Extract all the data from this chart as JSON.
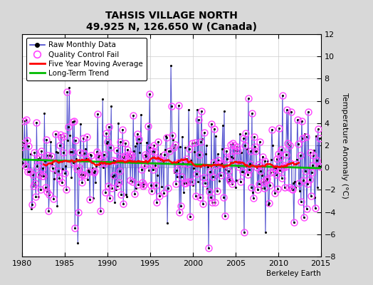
{
  "title": "TAHSIS VILLAGE NORTH",
  "subtitle": "49.925 N, 126.650 W (Canada)",
  "ylabel": "Temperature Anomaly (°C)",
  "attribution": "Berkeley Earth",
  "xlim": [
    1980,
    2015
  ],
  "ylim": [
    -8,
    12
  ],
  "yticks": [
    -8,
    -6,
    -4,
    -2,
    0,
    2,
    4,
    6,
    8,
    10,
    12
  ],
  "xticks": [
    1980,
    1985,
    1990,
    1995,
    2000,
    2005,
    2010,
    2015
  ],
  "background_color": "#d8d8d8",
  "plot_bg_color": "#ffffff",
  "raw_color": "#4444cc",
  "stem_color": "#8888dd",
  "raw_dot_color": "#000000",
  "qc_color": "#ff44ff",
  "ma_color": "#ff0000",
  "trend_color": "#00bb00",
  "legend_items": [
    "Raw Monthly Data",
    "Quality Control Fail",
    "Five Year Moving Average",
    "Long-Term Trend"
  ],
  "title_fontsize": 10,
  "subtitle_fontsize": 8,
  "ylabel_fontsize": 8,
  "tick_fontsize": 8,
  "legend_fontsize": 7.5
}
